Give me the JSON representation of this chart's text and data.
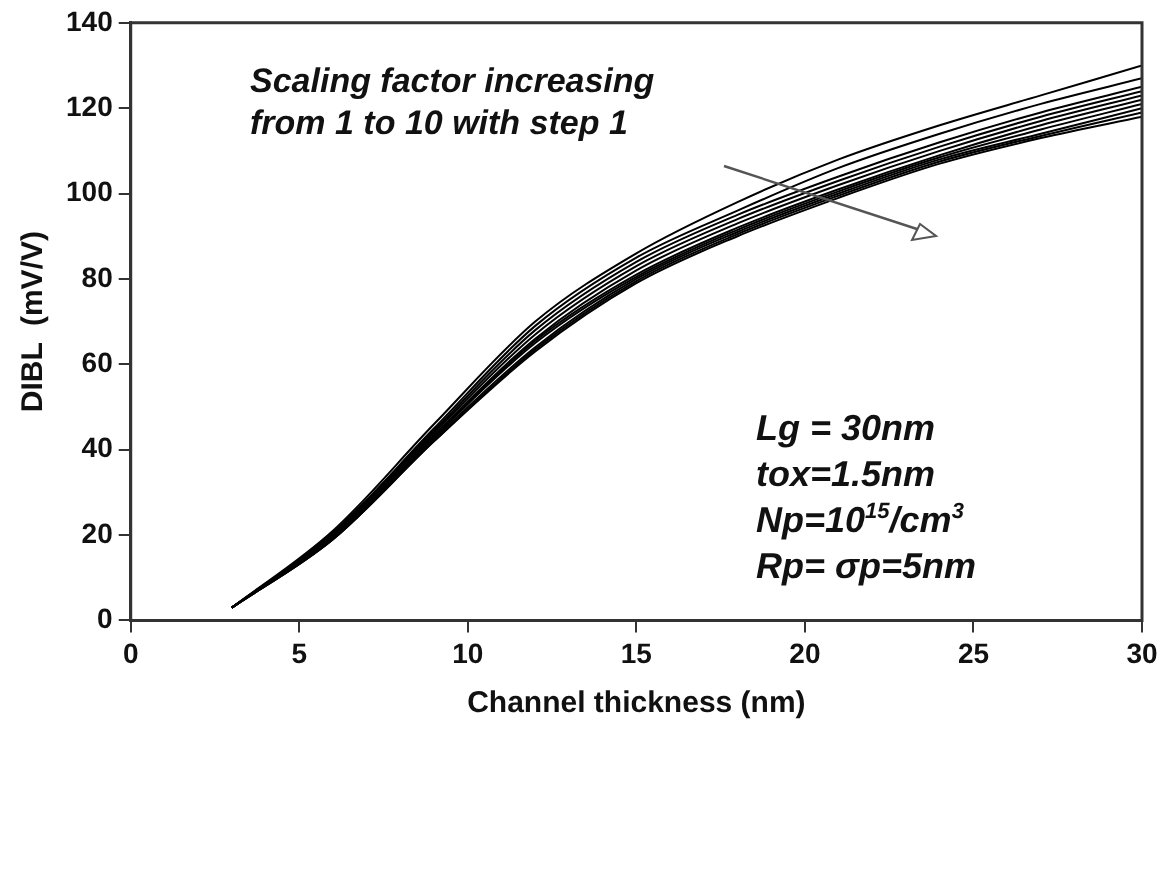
{
  "chart_data": {
    "type": "line",
    "xlabel": "Channel thickness (nm)",
    "ylabel": "DIBL  (mV/V)",
    "x": [
      3,
      6,
      9,
      12,
      15,
      18,
      21,
      24,
      27,
      30
    ],
    "xlim": [
      0,
      30
    ],
    "xticks": [
      0,
      5,
      10,
      15,
      20,
      25,
      30
    ],
    "ylim": [
      0,
      140
    ],
    "yticks": [
      0,
      20,
      40,
      60,
      80,
      100,
      120,
      140
    ],
    "grid": false,
    "legend": false,
    "marker": "none",
    "line_style": "solid",
    "annotations": [
      "Scaling factor increasing\nfrom 1 to 10 with step 1",
      "Lg = 30nm\ntox=1.5nm\nNp=10$^{15}$/cm$^{3}$\nRp= σp=5nm"
    ],
    "series": [
      {
        "color": "#000000",
        "values": [
          3,
          21,
          46,
          70,
          86,
          98,
          108,
          116,
          123,
          130
        ]
      },
      {
        "color": "#000000",
        "values": [
          3,
          20.5,
          45,
          69,
          85,
          96,
          106,
          114,
          121,
          127
        ]
      },
      {
        "color": "#000000",
        "values": [
          3,
          20.5,
          44.5,
          68,
          84,
          95,
          104,
          112,
          119,
          125
        ]
      },
      {
        "color": "#000000",
        "values": [
          3,
          20,
          44,
          67,
          83,
          94,
          103,
          111,
          118,
          124
        ]
      },
      {
        "color": "#000000",
        "values": [
          3,
          20,
          43.5,
          66,
          82,
          93,
          102,
          110,
          117,
          123
        ]
      },
      {
        "color": "#000000",
        "values": [
          3,
          19.5,
          43,
          65.5,
          81,
          92,
          101,
          109,
          116,
          122
        ]
      },
      {
        "color": "#000000",
        "values": [
          3,
          19.5,
          43,
          65,
          80.5,
          91.5,
          100.5,
          108.5,
          115,
          121
        ]
      },
      {
        "color": "#000000",
        "values": [
          3,
          19,
          42.5,
          64,
          80,
          91,
          100,
          108,
          114,
          120
        ]
      },
      {
        "color": "#000000",
        "values": [
          3,
          19,
          42,
          63.5,
          79.5,
          90.5,
          99.5,
          107.5,
          113.5,
          119
        ]
      },
      {
        "color": "#000000",
        "values": [
          3,
          19,
          42,
          63,
          79,
          90,
          99,
          107,
          113,
          118
        ]
      }
    ]
  }
}
